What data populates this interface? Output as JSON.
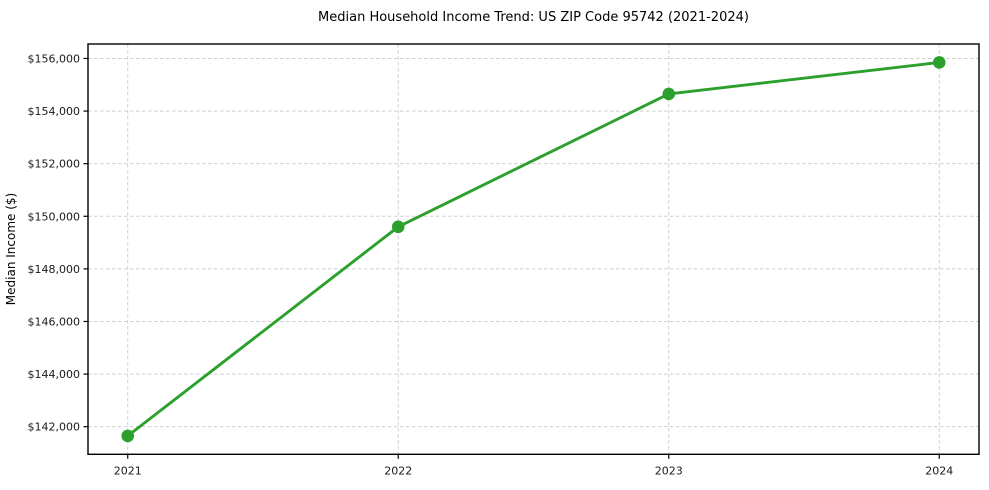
{
  "chart_data": {
    "type": "line",
    "title": "Median Household Income Trend: US ZIP Code 95742 (2021-2024)",
    "xlabel": "",
    "ylabel": "Median Income ($)",
    "categories": [
      "2021",
      "2022",
      "2023",
      "2024"
    ],
    "series": [
      {
        "name": "Median Household Income",
        "values": [
          141650,
          149600,
          154650,
          155850
        ]
      }
    ],
    "y_ticks": [
      {
        "value": 142000,
        "label": "$142,000"
      },
      {
        "value": 144000,
        "label": "$144,000"
      },
      {
        "value": 146000,
        "label": "$146,000"
      },
      {
        "value": 148000,
        "label": "$148,000"
      },
      {
        "value": 150000,
        "label": "$150,000"
      },
      {
        "value": 152000,
        "label": "$152,000"
      },
      {
        "value": 154000,
        "label": "$154,000"
      },
      {
        "value": 156000,
        "label": "$156,000"
      }
    ],
    "ylim": [
      140950,
      156550
    ],
    "grid": true,
    "grid_style": "dashed",
    "legend": null,
    "marker": "circle",
    "colors": {
      "line": "#2ca02c",
      "marker": "#2ca02c",
      "grid": "#cfcfcf",
      "spine": "#000000",
      "text": "#1a1a1a",
      "background": "#ffffff"
    }
  }
}
